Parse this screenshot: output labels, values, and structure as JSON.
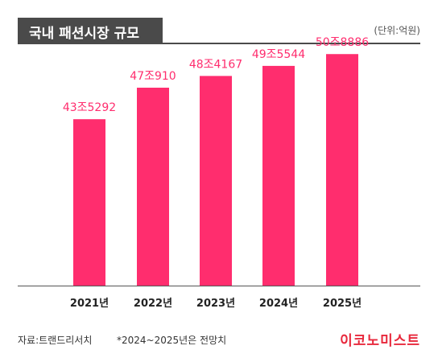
{
  "header": {
    "title": "국내 패션시장 규모",
    "unit": "(단위:억원)"
  },
  "footer": {
    "source": "자료:트랜드리서치",
    "note": "*2024~2025년은 전망치",
    "brand": "이코노미스트"
  },
  "colors": {
    "bar": "#ff2d6e",
    "label": "#ff2d6e",
    "title_bg": "#4a4a4a",
    "brand": "#e8283c"
  },
  "chart_data": {
    "type": "bar",
    "categories": [
      "2021년",
      "2022년",
      "2023년",
      "2024년",
      "2025년"
    ],
    "values": [
      435292,
      470910,
      484167,
      495544,
      508886
    ],
    "value_labels": [
      "43조5292",
      "47조910",
      "48조4167",
      "49조5544",
      "50조8886"
    ],
    "ylabel": "",
    "xlabel": "",
    "grid": false,
    "legend": "none"
  }
}
